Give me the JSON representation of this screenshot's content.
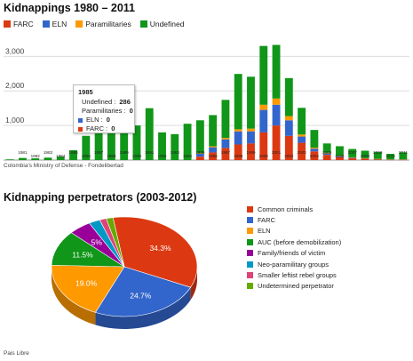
{
  "chart_data": [
    {
      "type": "bar",
      "stacked": true,
      "title": "Kidnappings 1980 – 2011",
      "source": "Colombia's Ministry of Defense - Fondelibertad",
      "ylim": [
        0,
        3600
      ],
      "yticks": [
        "1,000",
        "2,000",
        "3,000"
      ],
      "ytick_values": [
        1000,
        2000,
        3000
      ],
      "grid": true,
      "legend_position": "top",
      "categories": [
        "1980",
        "1981",
        "1982",
        "1983",
        "1984",
        "1985",
        "1986",
        "1987",
        "1988",
        "1989",
        "1990",
        "1991",
        "1992",
        "1993",
        "1994",
        "1995",
        "1996",
        "1997",
        "1998",
        "1999",
        "2000",
        "2001",
        "2002",
        "2003",
        "2004",
        "2005",
        "2006",
        "2007",
        "2008",
        "2009",
        "2010",
        "2011"
      ],
      "xtick_labels": [
        "1981",
        "1982",
        "1983",
        "1984",
        "1985",
        "1986",
        "1987",
        "1988",
        "1989",
        "1990",
        "1991",
        "1992",
        "1993",
        "1994",
        "1995",
        "1996",
        "1997",
        "1998",
        "1999",
        "2000",
        "2001",
        "2002",
        "2003",
        "2004",
        "2005",
        "2006",
        "2007",
        "2008",
        "2009",
        "2010",
        "2011"
      ],
      "series": [
        {
          "name": "FARC",
          "color": "#dc3912",
          "values": [
            0,
            0,
            0,
            0,
            0,
            0,
            0,
            0,
            0,
            0,
            0,
            0,
            0,
            0,
            0,
            100,
            220,
            350,
            450,
            480,
            800,
            1000,
            700,
            500,
            250,
            150,
            80,
            50,
            40,
            20,
            10,
            10
          ]
        },
        {
          "name": "ELN",
          "color": "#3366cc",
          "values": [
            0,
            0,
            0,
            0,
            0,
            0,
            0,
            0,
            0,
            0,
            0,
            0,
            0,
            0,
            0,
            80,
            150,
            250,
            380,
            350,
            650,
            600,
            450,
            180,
            80,
            40,
            30,
            20,
            10,
            10,
            5,
            5
          ]
        },
        {
          "name": "Paramilitaries",
          "color": "#ff9900",
          "values": [
            0,
            0,
            0,
            0,
            0,
            0,
            0,
            0,
            0,
            0,
            0,
            0,
            0,
            0,
            0,
            20,
            30,
            40,
            60,
            80,
            150,
            180,
            120,
            60,
            30,
            20,
            10,
            10,
            5,
            5,
            5,
            5
          ]
        },
        {
          "name": "Undefined",
          "color": "#109618",
          "values": [
            20,
            60,
            50,
            70,
            100,
            286,
            700,
            850,
            900,
            950,
            1000,
            1500,
            800,
            750,
            1050,
            950,
            900,
            1100,
            1600,
            1500,
            1700,
            1550,
            1100,
            770,
            510,
            270,
            280,
            240,
            215,
            195,
            160,
            205
          ]
        }
      ],
      "tooltip": {
        "year": "1985",
        "lines": [
          {
            "label": "Undefined",
            "value": "286",
            "color": "#109618"
          },
          {
            "label": "Paramilitaries",
            "value": "0",
            "color": "#ff9900"
          },
          {
            "label": "ELN",
            "value": "0",
            "color": "#3366cc"
          },
          {
            "label": "FARC",
            "value": "0",
            "color": "#dc3912"
          }
        ]
      }
    },
    {
      "type": "pie",
      "title": "Kidnapping perpetrators (2003-2012)",
      "source": "Pais Libre",
      "legend_position": "right",
      "slices": [
        {
          "label": "Common criminals",
          "value": 34.3,
          "text": "34.3%",
          "color": "#dc3912"
        },
        {
          "label": "FARC",
          "value": 24.7,
          "text": "24.7%",
          "color": "#3366cc"
        },
        {
          "label": "ELN",
          "value": 19.0,
          "text": "19.0%",
          "color": "#ff9900"
        },
        {
          "label": "AUC (before demobilization)",
          "value": 11.5,
          "text": "11.5%",
          "color": "#109618"
        },
        {
          "label": "Family/friends of victim",
          "value": 5.0,
          "text": "5%",
          "color": "#990099"
        },
        {
          "label": "Neo-paramilitary groups",
          "value": 2.5,
          "text": "",
          "color": "#0099c6"
        },
        {
          "label": "Smaller leftist rebel groups",
          "value": 1.5,
          "text": "",
          "color": "#dd4477"
        },
        {
          "label": "Undetermined perpetrator",
          "value": 1.5,
          "text": "",
          "color": "#66aa00"
        }
      ]
    }
  ]
}
